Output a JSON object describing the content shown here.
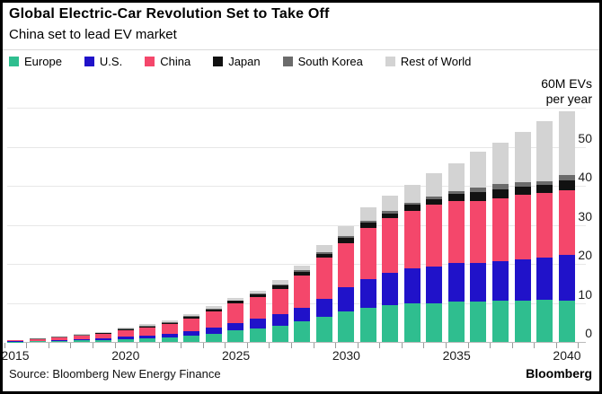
{
  "header": {
    "title": "Global Electric-Car Revolution Set to Take Off",
    "subtitle": "China set to lead EV market"
  },
  "legend": [
    {
      "label": "Europe",
      "color": "#2FBE8F"
    },
    {
      "label": "U.S.",
      "color": "#2012C9"
    },
    {
      "label": "China",
      "color": "#F4476B"
    },
    {
      "label": "Japan",
      "color": "#111111"
    },
    {
      "label": "South Korea",
      "color": "#6B6B6B"
    },
    {
      "label": "Rest of World",
      "color": "#D3D3D3"
    }
  ],
  "axis": {
    "y_unit_line1": "60M EVs",
    "y_unit_line2": "per year",
    "y_ticks": [
      0,
      10,
      20,
      30,
      40,
      50
    ],
    "x_labels": [
      "2015",
      "2020",
      "2025",
      "2030",
      "2035",
      "2040"
    ]
  },
  "footer": {
    "source": "Source: Bloomberg New Energy Finance",
    "brand": "Bloomberg"
  },
  "chart_data": {
    "type": "bar",
    "stacked": true,
    "title": "Global Electric-Car Revolution Set to Take Off",
    "subtitle": "China set to lead EV market",
    "xlabel": "",
    "ylabel": "60M EVs per year",
    "ylim": [
      0,
      66
    ],
    "grid": "horizontal",
    "legend_position": "top",
    "categories": [
      2015,
      2016,
      2017,
      2018,
      2019,
      2020,
      2021,
      2022,
      2023,
      2024,
      2025,
      2026,
      2027,
      2028,
      2029,
      2030,
      2031,
      2032,
      2033,
      2034,
      2035,
      2036,
      2037,
      2038,
      2039,
      2040
    ],
    "series": [
      {
        "name": "Europe",
        "color": "#2FBE8F",
        "values": [
          0.1,
          0.2,
          0.3,
          0.4,
          0.5,
          0.7,
          0.9,
          1.1,
          1.5,
          2.1,
          2.9,
          3.5,
          4.1,
          5.2,
          6.4,
          7.8,
          8.7,
          9.4,
          9.8,
          10.0,
          10.3,
          10.4,
          10.5,
          10.6,
          10.7,
          10.5
        ]
      },
      {
        "name": "U.S.",
        "color": "#2012C9",
        "values": [
          0.1,
          0.15,
          0.2,
          0.3,
          0.4,
          0.6,
          0.7,
          0.9,
          1.2,
          1.6,
          1.9,
          2.4,
          3.0,
          3.5,
          4.6,
          6.2,
          7.5,
          8.4,
          9.0,
          9.3,
          9.9,
          9.9,
          10.1,
          10.5,
          10.9,
          11.8
        ]
      },
      {
        "name": "China",
        "color": "#F4476B",
        "values": [
          0.2,
          0.35,
          0.6,
          0.9,
          1.1,
          1.8,
          2.1,
          2.6,
          3.3,
          4.2,
          5.2,
          5.6,
          6.4,
          8.3,
          10.6,
          11.4,
          12.9,
          13.9,
          14.7,
          15.8,
          16.0,
          15.9,
          16.3,
          16.5,
          16.5,
          16.5
        ]
      },
      {
        "name": "Japan",
        "color": "#111111",
        "values": [
          0.05,
          0.1,
          0.1,
          0.1,
          0.2,
          0.2,
          0.3,
          0.3,
          0.4,
          0.5,
          0.5,
          0.6,
          0.9,
          0.9,
          0.9,
          1.2,
          1.4,
          1.3,
          1.6,
          1.4,
          1.8,
          2.1,
          2.1,
          2.1,
          2.1,
          2.5
        ]
      },
      {
        "name": "South Korea",
        "color": "#6B6B6B",
        "values": [
          0.02,
          0.05,
          0.1,
          0.1,
          0.1,
          0.1,
          0.15,
          0.2,
          0.2,
          0.2,
          0.2,
          0.3,
          0.4,
          0.4,
          0.5,
          0.5,
          0.6,
          0.6,
          0.6,
          0.7,
          0.7,
          1.2,
          1.4,
          1.3,
          0.9,
          1.4
        ]
      },
      {
        "name": "Rest of World",
        "color": "#D3D3D3",
        "values": [
          0.05,
          0.1,
          0.15,
          0.2,
          0.3,
          0.4,
          0.4,
          0.5,
          0.5,
          0.5,
          0.6,
          0.8,
          1.0,
          1.3,
          1.8,
          2.5,
          3.3,
          3.8,
          4.5,
          6.0,
          7.0,
          9.2,
          10.6,
          12.7,
          15.4,
          16.5
        ]
      }
    ],
    "totals_by_year_approx": [
      0.5,
      1.0,
      1.5,
      2.0,
      2.6,
      3.8,
      4.6,
      5.6,
      7.1,
      9.1,
      11.3,
      13.2,
      15.8,
      19.6,
      24.8,
      29.6,
      34.4,
      37.4,
      40.2,
      43.2,
      45.7,
      48.7,
      51.0,
      53.7,
      56.5,
      59.2
    ]
  }
}
